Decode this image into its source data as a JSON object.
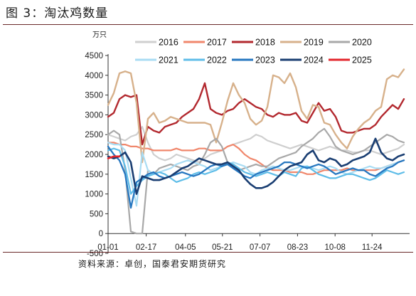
{
  "figure_title": "图 3：淘汰鸡数量",
  "source_note": "资料来源：卓创，国泰君安期货研究",
  "chart_data": {
    "type": "line",
    "unit_label": "万只",
    "ylim": [
      -500,
      4500
    ],
    "yticks": [
      -500,
      0,
      500,
      1000,
      1500,
      2000,
      2500,
      3000,
      3500,
      4000,
      4500
    ],
    "xlim": [
      0,
      53
    ],
    "x_tick_labels": [
      "01-01",
      "02-17",
      "04-05",
      "05-21",
      "07-07",
      "08-23",
      "10-08",
      "11-24"
    ],
    "x_tick_weeks": [
      0,
      6.7,
      13.6,
      20.1,
      26.7,
      33.3,
      39.9,
      46.4
    ],
    "grid": false,
    "legend_position": "top",
    "x": [
      0,
      1,
      2,
      3,
      4,
      5,
      6,
      7,
      8,
      9,
      10,
      11,
      12,
      13,
      14,
      15,
      16,
      17,
      18,
      19,
      20,
      21,
      22,
      23,
      24,
      25,
      26,
      27,
      28,
      29,
      30,
      31,
      32,
      33,
      34,
      35,
      36,
      37,
      38,
      39,
      40,
      41,
      42,
      43,
      44,
      45,
      46,
      47,
      48,
      49,
      50,
      51,
      52
    ],
    "series": [
      {
        "name": "2016",
        "color": "#cfcfcf",
        "width": 2.2,
        "values": [
          2500,
          2450,
          2400,
          2350,
          2450,
          2500,
          2700,
          2300,
          2000,
          1900,
          1850,
          1900,
          2000,
          1950,
          1900,
          1850,
          1800,
          1900,
          2000,
          2050,
          2100,
          2200,
          2250,
          2300,
          2350,
          2400,
          2500,
          2450,
          2350,
          2300,
          2250,
          2200,
          2150,
          2200,
          2250,
          2200,
          2150,
          2100,
          2150,
          2200,
          2150,
          2100,
          2100,
          2050,
          2050,
          2100,
          2100,
          2050,
          2000,
          2050,
          2100,
          2150,
          2250
        ]
      },
      {
        "name": "2017",
        "color": "#f0876c",
        "width": 2.2,
        "values": [
          2300,
          2300,
          2250,
          2250,
          2200,
          2200,
          2150,
          2150,
          2100,
          2100,
          2100,
          2100,
          2150,
          2100,
          2100,
          2100,
          2150,
          2150,
          2100,
          2100,
          2100,
          2200,
          2250,
          2150,
          2000,
          1900,
          1850,
          1750,
          1650,
          1600,
          1600,
          1600,
          1550,
          1550,
          1550,
          1500,
          1500,
          1550,
          1600,
          1600,
          1600,
          1600,
          1650,
          1600,
          1600,
          1600,
          1600,
          1600,
          1650,
          1700,
          1750,
          1800,
          1850
        ]
      },
      {
        "name": "2018",
        "color": "#b2282e",
        "width": 2.4,
        "values": [
          2950,
          3050,
          3400,
          3500,
          3450,
          3500,
          2250,
          2700,
          2600,
          2550,
          2700,
          2750,
          2800,
          2950,
          3050,
          3150,
          3400,
          3800,
          3150,
          3050,
          3000,
          3100,
          3150,
          3300,
          3400,
          3300,
          3200,
          3150,
          3000,
          2950,
          3050,
          3000,
          3000,
          3050,
          2850,
          2800,
          3050,
          3300,
          3100,
          3150,
          2950,
          2600,
          2550,
          2550,
          2600,
          2650,
          2650,
          2750,
          2950,
          3100,
          3250,
          3150,
          3400
        ]
      },
      {
        "name": "2019",
        "color": "#d7b18b",
        "width": 2.4,
        "values": [
          3250,
          3550,
          4050,
          4100,
          4050,
          3300,
          1800,
          2900,
          3050,
          2800,
          2850,
          2950,
          2900,
          2850,
          2800,
          2800,
          2800,
          2800,
          2750,
          2300,
          2800,
          3350,
          3800,
          3500,
          3300,
          2900,
          2750,
          2850,
          3200,
          4000,
          3950,
          3800,
          4050,
          3700,
          3100,
          2900,
          3250,
          3200,
          2800,
          2750,
          2500,
          2300,
          2150,
          2450,
          2650,
          2800,
          2900,
          3100,
          3200,
          3900,
          4000,
          3950,
          4150
        ]
      },
      {
        "name": "2020",
        "color": "#a8a8a8",
        "width": 2.2,
        "values": [
          2500,
          2600,
          2500,
          1600,
          50,
          0,
          0,
          1600,
          1500,
          1650,
          1700,
          1750,
          1700,
          1650,
          1600,
          1700,
          1750,
          2000,
          2300,
          2400,
          2200,
          1800,
          1700,
          1600,
          1650,
          1700,
          1750,
          1700,
          1700,
          1800,
          1900,
          1950,
          2000,
          2050,
          2200,
          2300,
          2400,
          2550,
          2650,
          2450,
          2200,
          2100,
          2050,
          2000,
          2050,
          2100,
          2200,
          2300,
          2400,
          2500,
          2450,
          2350,
          2300
        ]
      },
      {
        "name": "2021",
        "color": "#a9dcf3",
        "width": 2.2,
        "values": [
          2300,
          2250,
          2250,
          2100,
          1400,
          700,
          2050,
          1600,
          1500,
          1550,
          1600,
          1650,
          1750,
          1800,
          1850,
          1800,
          1750,
          1700,
          1600,
          1650,
          1700,
          1750,
          1800,
          1750,
          1700,
          1550,
          1500,
          1600,
          1650,
          1700,
          1650,
          1600,
          1600,
          1650,
          1700,
          1700,
          1650,
          1600,
          1650,
          1700,
          1650,
          1550,
          1500,
          1550,
          1600,
          1650,
          1700,
          1650,
          1650,
          1700,
          1750,
          1800,
          1850
        ]
      },
      {
        "name": "2022",
        "color": "#5fbde8",
        "width": 2.2,
        "values": [
          2100,
          2150,
          2100,
          1700,
          1000,
          1200,
          1350,
          1450,
          1500,
          1550,
          1500,
          1400,
          1300,
          1350,
          1400,
          1500,
          1550,
          1500,
          1550,
          1600,
          1700,
          1800,
          1750,
          1650,
          1550,
          1500,
          1450,
          1500,
          1550,
          1500,
          1450,
          1550,
          1500,
          1450,
          1650,
          1700,
          1600,
          1500,
          1450,
          1400,
          1400,
          1450,
          1500,
          1500,
          1450,
          1400,
          1350,
          1400,
          1500,
          1600,
          1550,
          1500,
          1550
        ]
      },
      {
        "name": "2023",
        "color": "#2677c0",
        "width": 2.3,
        "values": [
          2200,
          2000,
          1850,
          1500,
          650,
          1300,
          1400,
          1500,
          1550,
          1450,
          1400,
          1450,
          1500,
          1550,
          1500,
          1450,
          1500,
          1600,
          1700,
          1750,
          1700,
          1750,
          1650,
          1550,
          1450,
          1400,
          1500,
          1550,
          1600,
          1650,
          1700,
          1800,
          1800,
          1750,
          1700,
          1650,
          1700,
          1750,
          1700,
          1600,
          1500,
          1550,
          1600,
          1650,
          1600,
          1600,
          1500,
          1450,
          1550,
          1650,
          1700,
          1800,
          1850
        ]
      },
      {
        "name": "2024",
        "color": "#1a3e72",
        "width": 2.6,
        "values": [
          1950,
          1900,
          1950,
          2050,
          1800,
          1000,
          1450,
          1400,
          1350,
          1350,
          1400,
          1450,
          1550,
          1650,
          1700,
          1800,
          1900,
          1850,
          1800,
          1750,
          1750,
          1800,
          1700,
          1600,
          1400,
          1250,
          1150,
          1150,
          1200,
          1300,
          1450,
          1600,
          1700,
          1750,
          1800,
          2000,
          2100,
          1850,
          1800,
          1900,
          1850,
          1700,
          1750,
          1850,
          1900,
          1950,
          2050,
          2400,
          2050,
          1900,
          1850,
          1950,
          2000
        ]
      },
      {
        "name": "2025",
        "color": "#e3262c",
        "width": 2.6,
        "values": [
          1900,
          1950,
          1950,
          null,
          null,
          null,
          null,
          null,
          null,
          null,
          null,
          null,
          null,
          null,
          null,
          null,
          null,
          null,
          null,
          null,
          null,
          null,
          null,
          null,
          null,
          null,
          null,
          null,
          null,
          null,
          null,
          null,
          null,
          null,
          null,
          null,
          null,
          null,
          null,
          null,
          null,
          null,
          null,
          null,
          null,
          null,
          null,
          null,
          null,
          null,
          null,
          null,
          null
        ]
      }
    ]
  }
}
